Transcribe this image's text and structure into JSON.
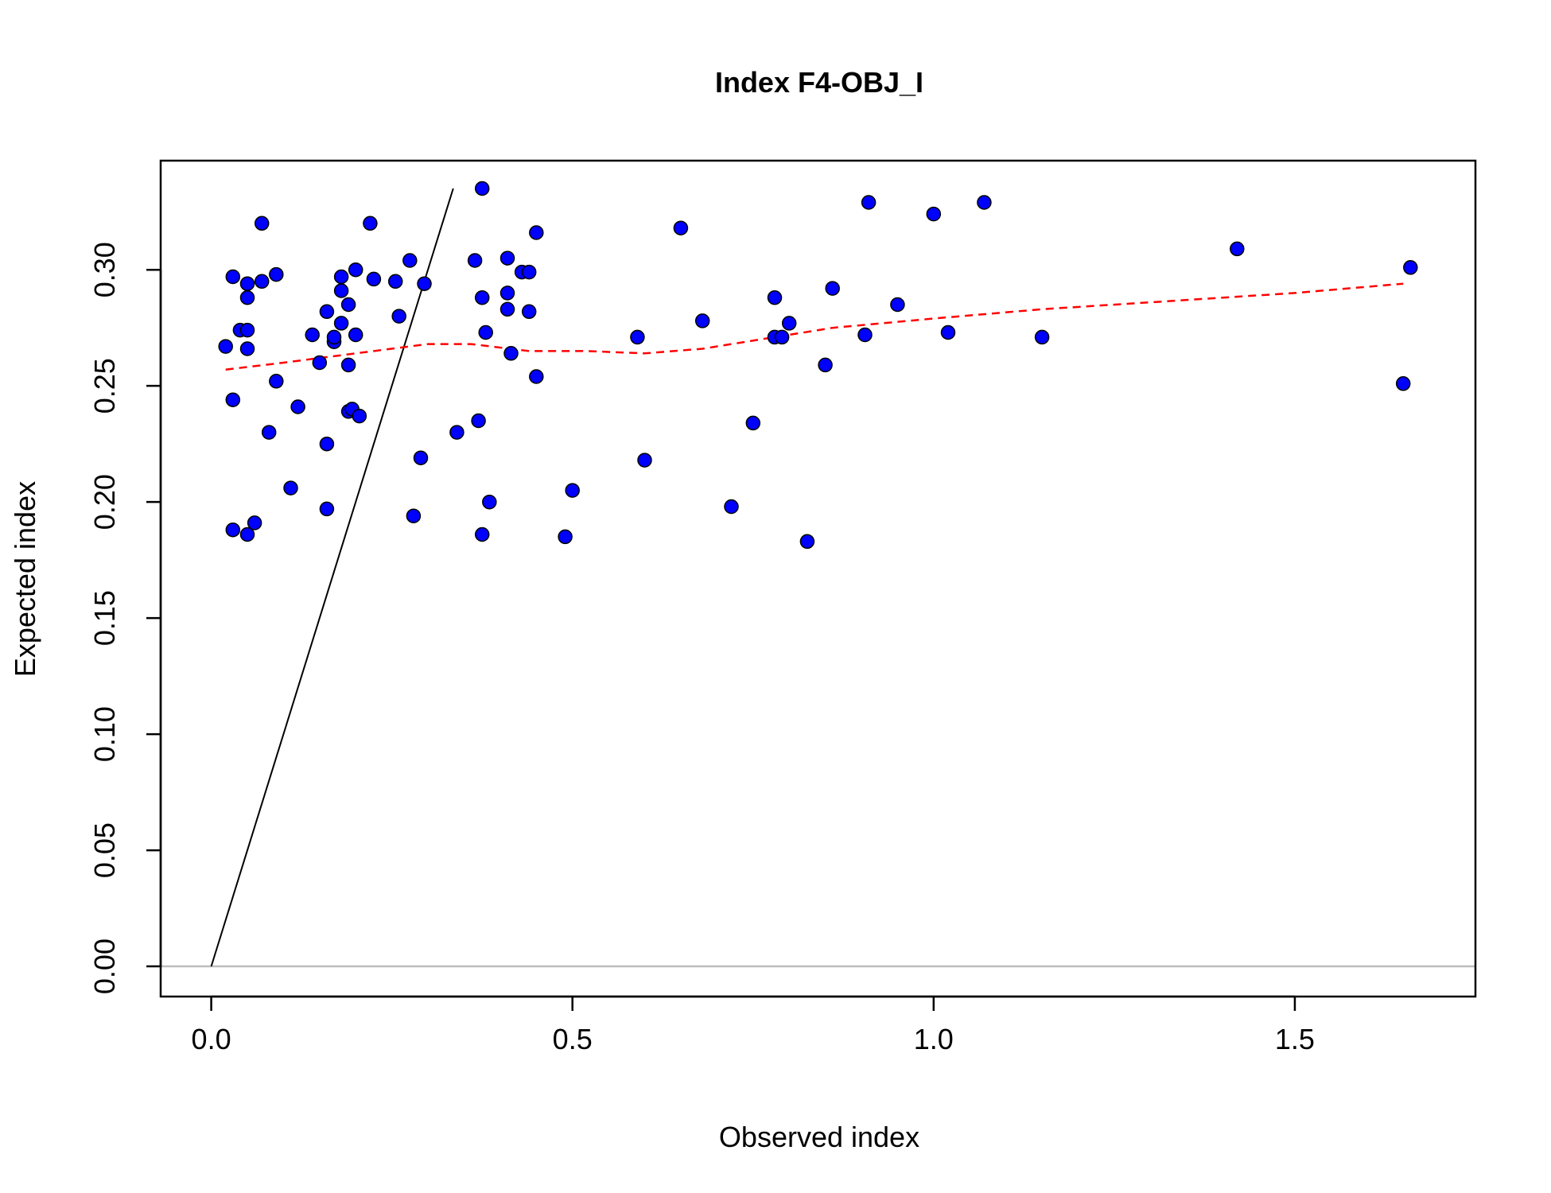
{
  "chart_data": {
    "type": "scatter",
    "title": "Index F4-OBJ_I",
    "xlabel": "Observed index",
    "ylabel": "Expected index",
    "xlim": [
      -0.07,
      1.75
    ],
    "ylim": [
      -0.013,
      0.347
    ],
    "x_ticks": [
      0.0,
      0.5,
      1.0,
      1.5
    ],
    "x_tick_labels": [
      "0.0",
      "0.5",
      "1.0",
      "1.5"
    ],
    "y_ticks": [
      0.0,
      0.05,
      0.1,
      0.15,
      0.2,
      0.25,
      0.3
    ],
    "y_tick_labels": [
      "0.00",
      "0.05",
      "0.10",
      "0.15",
      "0.20",
      "0.25",
      "0.30"
    ],
    "grid": false,
    "legend": "none",
    "series": [
      {
        "type": "scatter",
        "color": "#0000FF",
        "marker": "filled-circle",
        "points": [
          [
            0.02,
            0.267
          ],
          [
            0.03,
            0.297
          ],
          [
            0.03,
            0.244
          ],
          [
            0.03,
            0.188
          ],
          [
            0.04,
            0.274
          ],
          [
            0.05,
            0.294
          ],
          [
            0.05,
            0.288
          ],
          [
            0.05,
            0.274
          ],
          [
            0.05,
            0.266
          ],
          [
            0.05,
            0.186
          ],
          [
            0.06,
            0.191
          ],
          [
            0.07,
            0.32
          ],
          [
            0.07,
            0.295
          ],
          [
            0.08,
            0.23
          ],
          [
            0.09,
            0.298
          ],
          [
            0.09,
            0.252
          ],
          [
            0.11,
            0.206
          ],
          [
            0.12,
            0.241
          ],
          [
            0.14,
            0.272
          ],
          [
            0.15,
            0.26
          ],
          [
            0.16,
            0.282
          ],
          [
            0.16,
            0.197
          ],
          [
            0.16,
            0.225
          ],
          [
            0.17,
            0.269
          ],
          [
            0.17,
            0.271
          ],
          [
            0.18,
            0.297
          ],
          [
            0.18,
            0.291
          ],
          [
            0.18,
            0.277
          ],
          [
            0.19,
            0.285
          ],
          [
            0.19,
            0.259
          ],
          [
            0.19,
            0.239
          ],
          [
            0.195,
            0.24
          ],
          [
            0.2,
            0.272
          ],
          [
            0.2,
            0.3
          ],
          [
            0.205,
            0.237
          ],
          [
            0.22,
            0.32
          ],
          [
            0.225,
            0.296
          ],
          [
            0.255,
            0.295
          ],
          [
            0.26,
            0.28
          ],
          [
            0.275,
            0.304
          ],
          [
            0.28,
            0.194
          ],
          [
            0.29,
            0.219
          ],
          [
            0.295,
            0.294
          ],
          [
            0.34,
            0.23
          ],
          [
            0.365,
            0.304
          ],
          [
            0.37,
            0.235
          ],
          [
            0.375,
            0.288
          ],
          [
            0.375,
            0.186
          ],
          [
            0.375,
            0.335
          ],
          [
            0.38,
            0.273
          ],
          [
            0.385,
            0.2
          ],
          [
            0.41,
            0.29
          ],
          [
            0.41,
            0.305
          ],
          [
            0.41,
            0.283
          ],
          [
            0.415,
            0.264
          ],
          [
            0.43,
            0.299
          ],
          [
            0.44,
            0.299
          ],
          [
            0.44,
            0.282
          ],
          [
            0.45,
            0.316
          ],
          [
            0.45,
            0.254
          ],
          [
            0.49,
            0.185
          ],
          [
            0.5,
            0.205
          ],
          [
            0.59,
            0.271
          ],
          [
            0.6,
            0.218
          ],
          [
            0.65,
            0.318
          ],
          [
            0.68,
            0.278
          ],
          [
            0.72,
            0.198
          ],
          [
            0.75,
            0.234
          ],
          [
            0.78,
            0.288
          ],
          [
            0.78,
            0.271
          ],
          [
            0.79,
            0.271
          ],
          [
            0.8,
            0.277
          ],
          [
            0.825,
            0.183
          ],
          [
            0.85,
            0.259
          ],
          [
            0.86,
            0.292
          ],
          [
            0.905,
            0.272
          ],
          [
            0.91,
            0.329
          ],
          [
            0.95,
            0.285
          ],
          [
            1.0,
            0.324
          ],
          [
            1.02,
            0.273
          ],
          [
            1.07,
            0.329
          ],
          [
            1.15,
            0.271
          ],
          [
            1.42,
            0.309
          ],
          [
            1.65,
            0.251
          ],
          [
            1.66,
            0.301
          ]
        ]
      },
      {
        "type": "line",
        "color": "#000000",
        "style": "solid",
        "points": [
          [
            0.0,
            0.0
          ],
          [
            0.335,
            0.335
          ]
        ]
      },
      {
        "type": "line",
        "color": "#FF0000",
        "style": "dashed",
        "points": [
          [
            0.02,
            0.257
          ],
          [
            0.1,
            0.26
          ],
          [
            0.2,
            0.264
          ],
          [
            0.3,
            0.268
          ],
          [
            0.36,
            0.268
          ],
          [
            0.44,
            0.265
          ],
          [
            0.52,
            0.265
          ],
          [
            0.6,
            0.264
          ],
          [
            0.68,
            0.266
          ],
          [
            0.76,
            0.27
          ],
          [
            0.86,
            0.275
          ],
          [
            1.0,
            0.279
          ],
          [
            1.15,
            0.283
          ],
          [
            1.3,
            0.286
          ],
          [
            1.5,
            0.29
          ],
          [
            1.65,
            0.294
          ]
        ]
      },
      {
        "type": "hline",
        "color": "#BEBEBE",
        "style": "solid",
        "y": 0.0
      }
    ]
  }
}
